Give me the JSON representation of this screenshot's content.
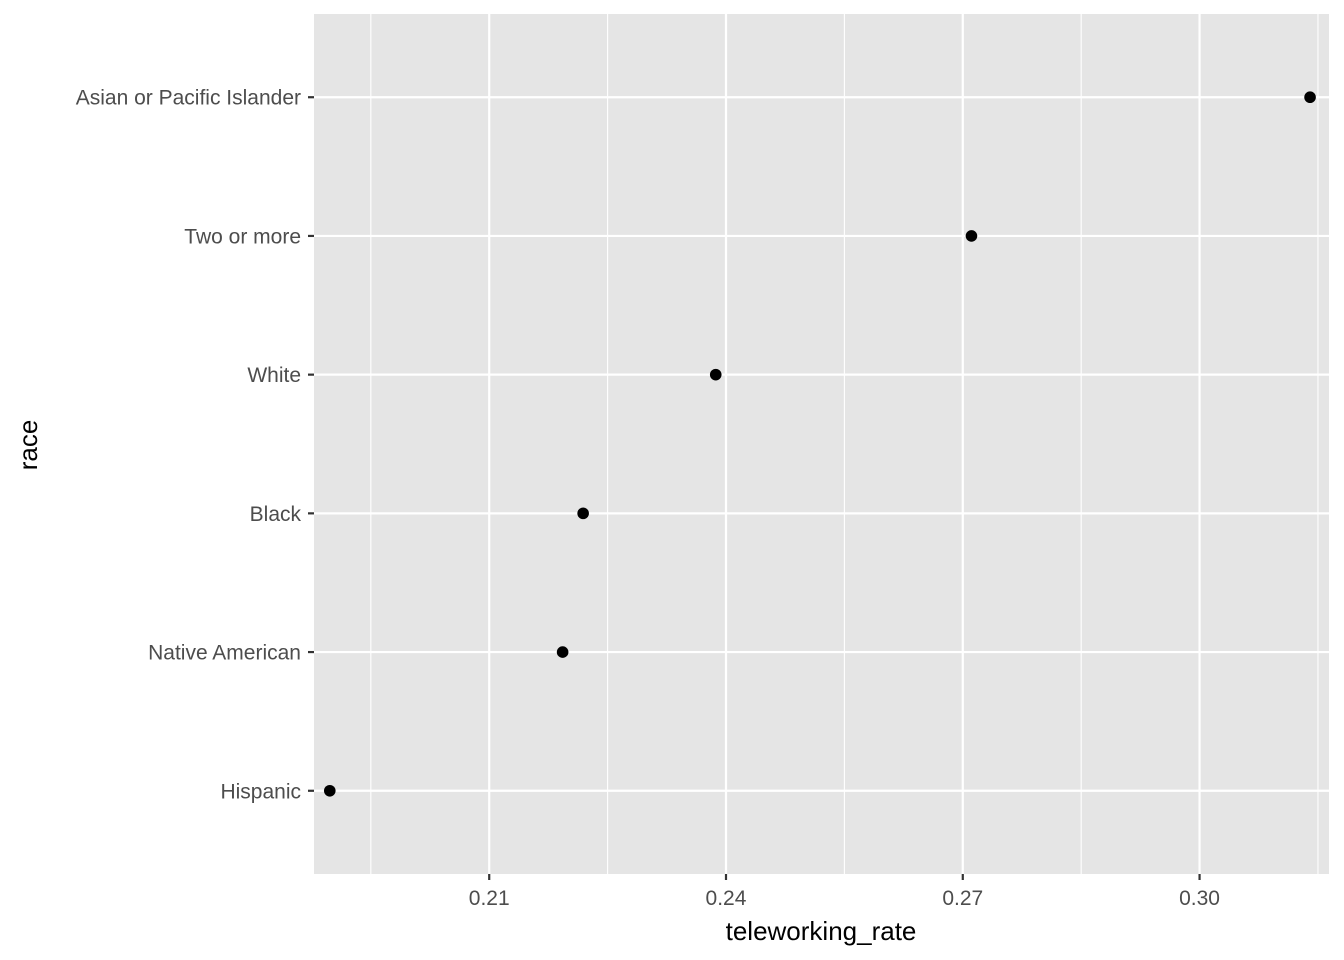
{
  "chart_data": {
    "type": "scatter",
    "title": "",
    "xlabel": "teleworking_rate",
    "ylabel": "race",
    "xlim": [
      0.1878,
      0.3164
    ],
    "x_ticks": [
      0.21,
      0.24,
      0.27,
      0.3
    ],
    "x_tick_labels": [
      "0.21",
      "0.24",
      "0.27",
      "0.30"
    ],
    "categories": [
      "Hispanic",
      "Native American",
      "Black",
      "White",
      "Two or more",
      "Asian or Pacific Islander"
    ],
    "values": [
      0.1898,
      0.2193,
      0.2219,
      0.2387,
      0.2711,
      0.314
    ],
    "grid": true,
    "legend": "none",
    "colors": {
      "panel": "#e5e5e5",
      "grid": "#ffffff",
      "point": "#000000",
      "tick_text": "#4d4d4d",
      "tick_mark": "#333333"
    }
  }
}
